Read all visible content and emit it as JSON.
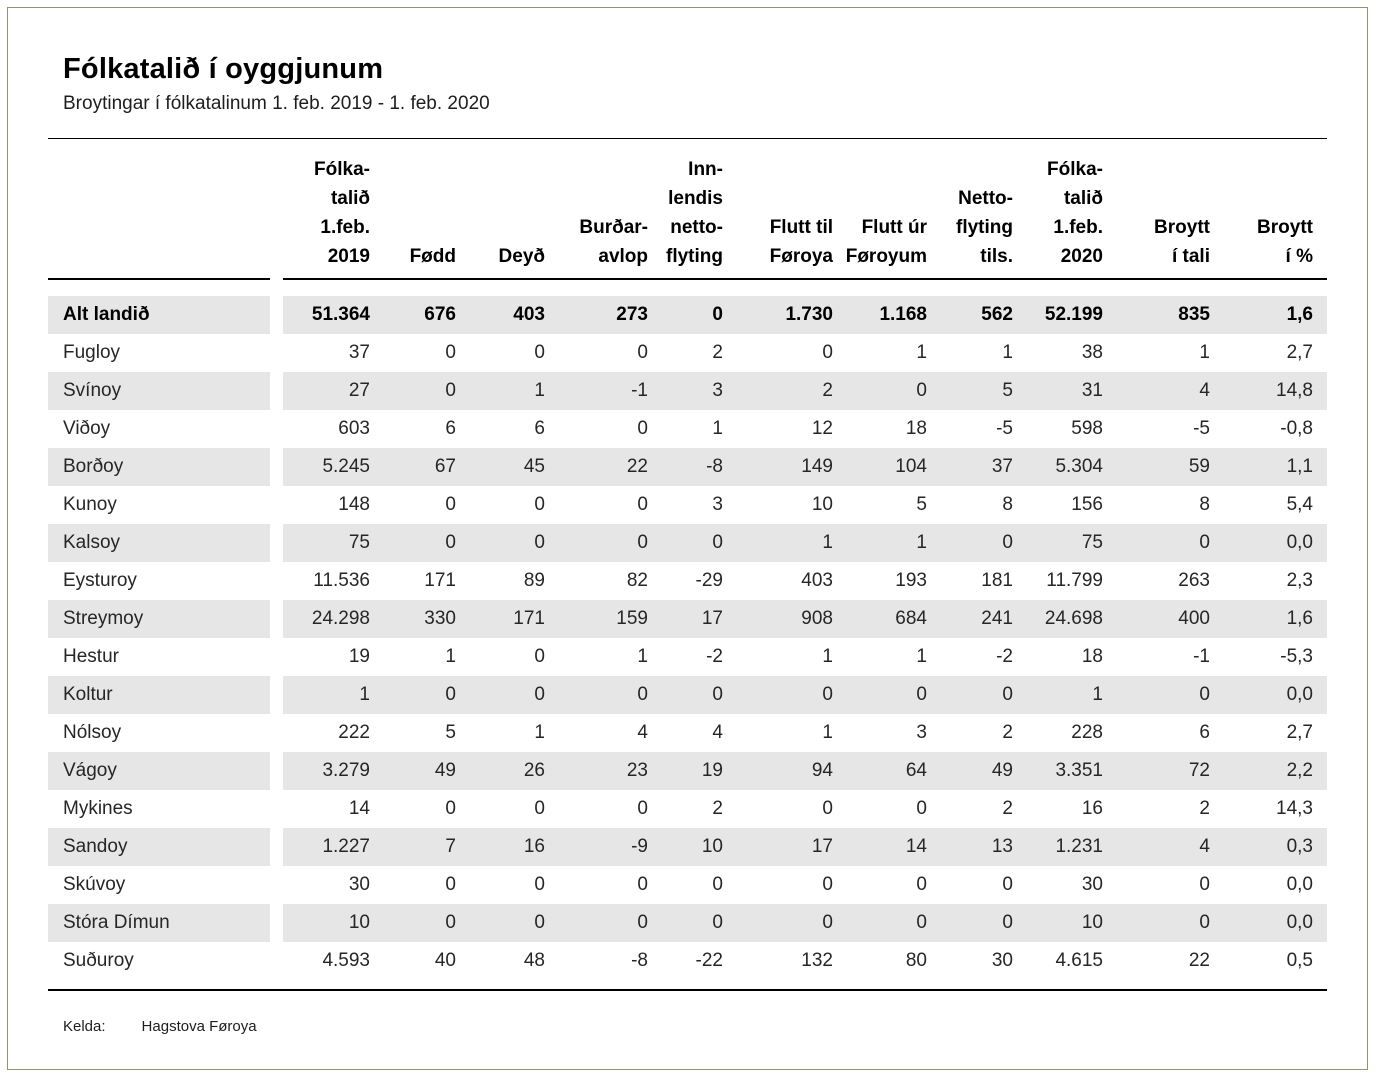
{
  "page": {
    "title": "Fólkatalið í oyggjunum",
    "subtitle": "Broytingar í fólkatalinum 1. feb. 2019 - 1. feb. 2020",
    "footer": {
      "kelda_label": "Kelda:",
      "source": "Hagstova Føroya"
    }
  },
  "colors": {
    "stripe": "#e6e6e6",
    "rule": "#000000",
    "frame": "#95906f",
    "text": "#262626"
  },
  "chart_data": {
    "type": "table",
    "title": "Fólkatalið í oyggjunum",
    "subtitle": "Broytingar í fólkatalinum 1. feb. 2019 - 1. feb. 2020",
    "source": "Hagstova Føroya",
    "row_label_header": "",
    "columns": [
      {
        "id": "folkatal-1feb-2019",
        "label": "Fólka-\ntalið\n1.feb.\n2019"
      },
      {
        "id": "fodd",
        "label": "Fødd"
      },
      {
        "id": "deyd",
        "label": "Deyð"
      },
      {
        "id": "burdaravlop",
        "label": "Burðar-\navlop"
      },
      {
        "id": "innlendis-nettoflyting",
        "label": "Inn-\nlendis\nnetto-\nflyting"
      },
      {
        "id": "flutt-til-foroya",
        "label": "Flutt til\nFøroya"
      },
      {
        "id": "flutt-ur-foroyum",
        "label": "Flutt úr\nFøroyum"
      },
      {
        "id": "nettoflyting-tils",
        "label": "Netto-\nflyting\ntils."
      },
      {
        "id": "folkatal-1feb-2020",
        "label": "Fólka-\ntalið\n1.feb.\n2020"
      },
      {
        "id": "broytt-i-tali",
        "label": "Broytt\ní tali"
      },
      {
        "id": "broytt-i-prosent",
        "label": "Broytt\ní %"
      }
    ],
    "rows": [
      {
        "label": "Alt landið",
        "bold": true,
        "values": [
          "51.364",
          "676",
          "403",
          "273",
          "0",
          "1.730",
          "1.168",
          "562",
          "52.199",
          "835",
          "1,6"
        ]
      },
      {
        "label": "Fugloy",
        "values": [
          "37",
          "0",
          "0",
          "0",
          "2",
          "0",
          "1",
          "1",
          "38",
          "1",
          "2,7"
        ]
      },
      {
        "label": "Svínoy",
        "values": [
          "27",
          "0",
          "1",
          "-1",
          "3",
          "2",
          "0",
          "5",
          "31",
          "4",
          "14,8"
        ]
      },
      {
        "label": "Viðoy",
        "values": [
          "603",
          "6",
          "6",
          "0",
          "1",
          "12",
          "18",
          "-5",
          "598",
          "-5",
          "-0,8"
        ]
      },
      {
        "label": "Borðoy",
        "values": [
          "5.245",
          "67",
          "45",
          "22",
          "-8",
          "149",
          "104",
          "37",
          "5.304",
          "59",
          "1,1"
        ]
      },
      {
        "label": "Kunoy",
        "values": [
          "148",
          "0",
          "0",
          "0",
          "3",
          "10",
          "5",
          "8",
          "156",
          "8",
          "5,4"
        ]
      },
      {
        "label": "Kalsoy",
        "values": [
          "75",
          "0",
          "0",
          "0",
          "0",
          "1",
          "1",
          "0",
          "75",
          "0",
          "0,0"
        ]
      },
      {
        "label": "Eysturoy",
        "values": [
          "11.536",
          "171",
          "89",
          "82",
          "-29",
          "403",
          "193",
          "181",
          "11.799",
          "263",
          "2,3"
        ]
      },
      {
        "label": "Streymoy",
        "values": [
          "24.298",
          "330",
          "171",
          "159",
          "17",
          "908",
          "684",
          "241",
          "24.698",
          "400",
          "1,6"
        ]
      },
      {
        "label": "Hestur",
        "values": [
          "19",
          "1",
          "0",
          "1",
          "-2",
          "1",
          "1",
          "-2",
          "18",
          "-1",
          "-5,3"
        ]
      },
      {
        "label": "Koltur",
        "values": [
          "1",
          "0",
          "0",
          "0",
          "0",
          "0",
          "0",
          "0",
          "1",
          "0",
          "0,0"
        ]
      },
      {
        "label": "Nólsoy",
        "values": [
          "222",
          "5",
          "1",
          "4",
          "4",
          "1",
          "3",
          "2",
          "228",
          "6",
          "2,7"
        ]
      },
      {
        "label": "Vágoy",
        "values": [
          "3.279",
          "49",
          "26",
          "23",
          "19",
          "94",
          "64",
          "49",
          "3.351",
          "72",
          "2,2"
        ]
      },
      {
        "label": "Mykines",
        "values": [
          "14",
          "0",
          "0",
          "0",
          "2",
          "0",
          "0",
          "2",
          "16",
          "2",
          "14,3"
        ]
      },
      {
        "label": "Sandoy",
        "values": [
          "1.227",
          "7",
          "16",
          "-9",
          "10",
          "17",
          "14",
          "13",
          "1.231",
          "4",
          "0,3"
        ]
      },
      {
        "label": "Skúvoy",
        "values": [
          "30",
          "0",
          "0",
          "0",
          "0",
          "0",
          "0",
          "0",
          "30",
          "0",
          "0,0"
        ]
      },
      {
        "label": "Stóra Dímun",
        "values": [
          "10",
          "0",
          "0",
          "0",
          "0",
          "0",
          "0",
          "0",
          "10",
          "0",
          "0,0"
        ]
      },
      {
        "label": "Suðuroy",
        "values": [
          "4.593",
          "40",
          "48",
          "-8",
          "-22",
          "132",
          "80",
          "30",
          "4.615",
          "22",
          "0,5"
        ]
      }
    ]
  }
}
